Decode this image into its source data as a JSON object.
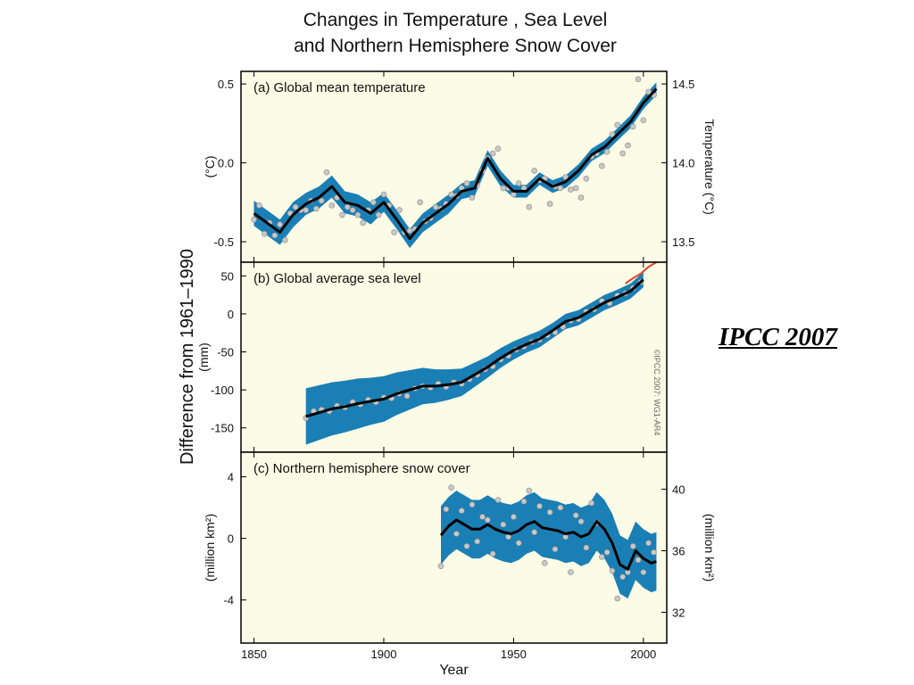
{
  "title": {
    "line1": "Changes in Temperature , Sea Level",
    "line2": "and Northern Hemisphere Snow Cover"
  },
  "source_note": "IPCC 2007",
  "copyright": "©IPCC 2007: WG1-AR4",
  "shared_ylabel": "Difference from 1961–1990",
  "shared_xlabel": "Year",
  "colors": {
    "background": "#fcfbe6",
    "band": "#1a7fb5",
    "trend": "#000000",
    "points": "#c8c8c8",
    "satellite": "#e0452c"
  },
  "chart_data": [
    {
      "type": "line",
      "panel_label": "(a) Global mean temperature",
      "ylabel": "(°C)",
      "ylabel_right": "Temperature (°C)",
      "xlim": [
        1845,
        2009
      ],
      "ylim": [
        -0.63,
        0.58
      ],
      "yticks": [
        "0.5",
        "0.0",
        "-0.5"
      ],
      "ytick_values": [
        0.5,
        0.0,
        -0.5
      ],
      "yticks_right": [
        "14.5",
        "14.0",
        "13.5"
      ],
      "ytick_right_values": [
        0.5,
        0.0,
        -0.5
      ],
      "series": [
        {
          "x": [
            1850,
            1855,
            1860,
            1865,
            1870,
            1875,
            1880,
            1885,
            1890,
            1895,
            1900,
            1905,
            1910,
            1915,
            1920,
            1925,
            1930,
            1935,
            1940,
            1945,
            1950,
            1955,
            1960,
            1965,
            1970,
            1975,
            1980,
            1985,
            1990,
            1995,
            2000,
            2005
          ],
          "y": [
            -0.32,
            -0.38,
            -0.44,
            -0.33,
            -0.26,
            -0.22,
            -0.15,
            -0.25,
            -0.27,
            -0.32,
            -0.25,
            -0.36,
            -0.48,
            -0.38,
            -0.32,
            -0.26,
            -0.18,
            -0.16,
            0.03,
            -0.1,
            -0.18,
            -0.18,
            -0.1,
            -0.15,
            -0.12,
            -0.05,
            0.05,
            0.1,
            0.18,
            0.26,
            0.38,
            0.47
          ],
          "band": [
            0.08,
            0.08,
            0.08,
            0.08,
            0.07,
            0.07,
            0.07,
            0.07,
            0.07,
            0.07,
            0.06,
            0.06,
            0.06,
            0.06,
            0.06,
            0.06,
            0.05,
            0.05,
            0.05,
            0.05,
            0.04,
            0.04,
            0.04,
            0.04,
            0.04,
            0.04,
            0.04,
            0.04,
            0.04,
            0.04,
            0.04,
            0.04
          ]
        }
      ],
      "annual_points": {
        "x": [
          1850,
          1852,
          1854,
          1856,
          1858,
          1860,
          1862,
          1864,
          1866,
          1868,
          1870,
          1872,
          1874,
          1876,
          1878,
          1880,
          1882,
          1884,
          1886,
          1888,
          1890,
          1892,
          1894,
          1896,
          1898,
          1900,
          1902,
          1904,
          1906,
          1908,
          1910,
          1912,
          1914,
          1916,
          1918,
          1920,
          1922,
          1924,
          1926,
          1928,
          1930,
          1932,
          1934,
          1936,
          1938,
          1940,
          1942,
          1944,
          1946,
          1948,
          1950,
          1952,
          1954,
          1956,
          1958,
          1960,
          1962,
          1964,
          1966,
          1968,
          1970,
          1972,
          1974,
          1976,
          1978,
          1980,
          1982,
          1984,
          1986,
          1988,
          1990,
          1992,
          1994,
          1996,
          1998,
          2000,
          2002,
          2004
        ],
        "y": [
          -0.36,
          -0.27,
          -0.45,
          -0.38,
          -0.46,
          -0.39,
          -0.49,
          -0.32,
          -0.28,
          -0.3,
          -0.3,
          -0.24,
          -0.29,
          -0.24,
          -0.06,
          -0.27,
          -0.22,
          -0.33,
          -0.28,
          -0.3,
          -0.33,
          -0.38,
          -0.3,
          -0.25,
          -0.33,
          -0.2,
          -0.27,
          -0.44,
          -0.3,
          -0.44,
          -0.43,
          -0.42,
          -0.25,
          -0.37,
          -0.35,
          -0.28,
          -0.29,
          -0.26,
          -0.2,
          -0.21,
          -0.16,
          -0.13,
          -0.22,
          -0.14,
          -0.05,
          0.03,
          0.06,
          0.09,
          -0.16,
          -0.16,
          -0.2,
          -0.13,
          -0.16,
          -0.28,
          -0.05,
          -0.11,
          -0.1,
          -0.26,
          -0.15,
          -0.16,
          -0.09,
          -0.17,
          -0.16,
          -0.22,
          -0.1,
          0.04,
          0.06,
          -0.02,
          0.07,
          0.18,
          0.24,
          0.06,
          0.11,
          0.23,
          0.53,
          0.27,
          0.45,
          0.43
        ]
      }
    },
    {
      "type": "line",
      "panel_label": "(b) Global average sea level",
      "ylabel": "(mm)",
      "xlim": [
        1845,
        2009
      ],
      "ylim": [
        -182,
        68
      ],
      "yticks": [
        "50",
        "0",
        "-50",
        "-100",
        "-150"
      ],
      "ytick_values": [
        50,
        0,
        -50,
        -100,
        -150
      ],
      "series": [
        {
          "x": [
            1870,
            1875,
            1880,
            1885,
            1890,
            1895,
            1900,
            1905,
            1910,
            1915,
            1920,
            1925,
            1930,
            1935,
            1940,
            1945,
            1950,
            1955,
            1960,
            1965,
            1970,
            1975,
            1980,
            1985,
            1990,
            1995,
            2000
          ],
          "y": [
            -135,
            -130,
            -125,
            -122,
            -118,
            -115,
            -112,
            -105,
            -100,
            -95,
            -95,
            -93,
            -90,
            -80,
            -70,
            -58,
            -48,
            -40,
            -33,
            -22,
            -10,
            -5,
            5,
            15,
            22,
            30,
            45
          ],
          "band": [
            37,
            36,
            35,
            34,
            33,
            31,
            30,
            28,
            26,
            24,
            22,
            20,
            18,
            16,
            14,
            13,
            12,
            11,
            11,
            10,
            10,
            10,
            10,
            10,
            10,
            10,
            10
          ]
        },
        {
          "name_hidden": true,
          "x": [
            1993,
            1996,
            1999,
            2002,
            2005
          ],
          "y": [
            40,
            47,
            53,
            62,
            68
          ]
        }
      ],
      "annual_points": {
        "x": [
          1870,
          1873,
          1876,
          1879,
          1882,
          1885,
          1888,
          1891,
          1894,
          1897,
          1900,
          1903,
          1906,
          1909,
          1912,
          1915,
          1918,
          1921,
          1924,
          1927,
          1930,
          1933,
          1936,
          1939,
          1942,
          1945,
          1948,
          1951,
          1954,
          1957,
          1960,
          1963,
          1966,
          1969,
          1972,
          1975,
          1978,
          1981,
          1984,
          1987,
          1990,
          1993,
          1996,
          1999
        ],
        "y": [
          -137,
          -128,
          -126,
          -128,
          -121,
          -123,
          -116,
          -119,
          -113,
          -116,
          -110,
          -111,
          -105,
          -108,
          -98,
          -95,
          -97,
          -92,
          -96,
          -90,
          -92,
          -86,
          -80,
          -73,
          -69,
          -60,
          -55,
          -47,
          -43,
          -37,
          -34,
          -28,
          -24,
          -17,
          -9,
          -7,
          3,
          6,
          17,
          14,
          24,
          27,
          34,
          42
        ]
      }
    },
    {
      "type": "line",
      "panel_label": "(c) Northern hemisphere snow cover",
      "ylabel": "(million km²)",
      "ylabel_right": "(million km²)",
      "xlim": [
        1845,
        2009
      ],
      "ylim": [
        -6.8,
        5.6
      ],
      "yticks": [
        "4",
        "0",
        "-4"
      ],
      "ytick_values": [
        4,
        0,
        -4
      ],
      "yticks_right": [
        "40",
        "36",
        "32"
      ],
      "ytick_right_values": [
        3.2,
        -0.8,
        -4.8
      ],
      "series": [
        {
          "x": [
            1922,
            1925,
            1928,
            1931,
            1934,
            1937,
            1940,
            1943,
            1946,
            1949,
            1952,
            1955,
            1958,
            1961,
            1964,
            1967,
            1970,
            1973,
            1976,
            1979,
            1982,
            1985,
            1988,
            1991,
            1994,
            1997,
            2000,
            2003,
            2005
          ],
          "y": [
            0.2,
            0.8,
            1.2,
            0.9,
            0.6,
            0.6,
            0.9,
            0.6,
            0.4,
            0.3,
            0.5,
            0.9,
            1.1,
            0.7,
            0.6,
            0.5,
            0.3,
            0.4,
            0.1,
            0.3,
            1.1,
            0.6,
            -0.3,
            -1.7,
            -2.0,
            -0.8,
            -1.3,
            -1.6,
            -1.5
          ],
          "band": [
            1.9,
            1.9,
            1.9,
            1.9,
            1.9,
            1.9,
            1.9,
            1.9,
            1.9,
            1.9,
            1.9,
            1.9,
            1.9,
            1.9,
            1.9,
            1.9,
            1.9,
            1.9,
            1.9,
            1.9,
            1.9,
            1.9,
            1.9,
            1.9,
            1.9,
            1.9,
            1.9,
            1.9,
            1.9
          ]
        }
      ],
      "annual_points": {
        "x": [
          1922,
          1924,
          1926,
          1928,
          1930,
          1932,
          1934,
          1936,
          1938,
          1940,
          1942,
          1944,
          1946,
          1948,
          1950,
          1952,
          1954,
          1956,
          1958,
          1960,
          1962,
          1964,
          1966,
          1968,
          1970,
          1972,
          1974,
          1976,
          1978,
          1980,
          1982,
          1984,
          1986,
          1988,
          1990,
          1992,
          1994,
          1996,
          1998,
          2000,
          2002,
          2004
        ],
        "y": [
          -1.8,
          1.9,
          3.3,
          0.3,
          1.8,
          -0.5,
          2.2,
          -0.2,
          1.4,
          1.2,
          -1.0,
          2.5,
          0.9,
          0.1,
          1.4,
          -0.3,
          2.4,
          3.1,
          0.4,
          2.1,
          -1.6,
          1.7,
          -0.7,
          2.0,
          0.1,
          -2.2,
          1.5,
          1.1,
          -0.6,
          2.3,
          1.0,
          -1.2,
          -0.9,
          -2.1,
          -3.9,
          -2.5,
          -2.2,
          -0.5,
          -1.4,
          -2.2,
          -0.3,
          -0.9
        ]
      }
    }
  ],
  "x_axis": {
    "ticks": [
      "1850",
      "1900",
      "1950",
      "2000"
    ],
    "tick_values": [
      1850,
      1900,
      1950,
      2000
    ]
  }
}
